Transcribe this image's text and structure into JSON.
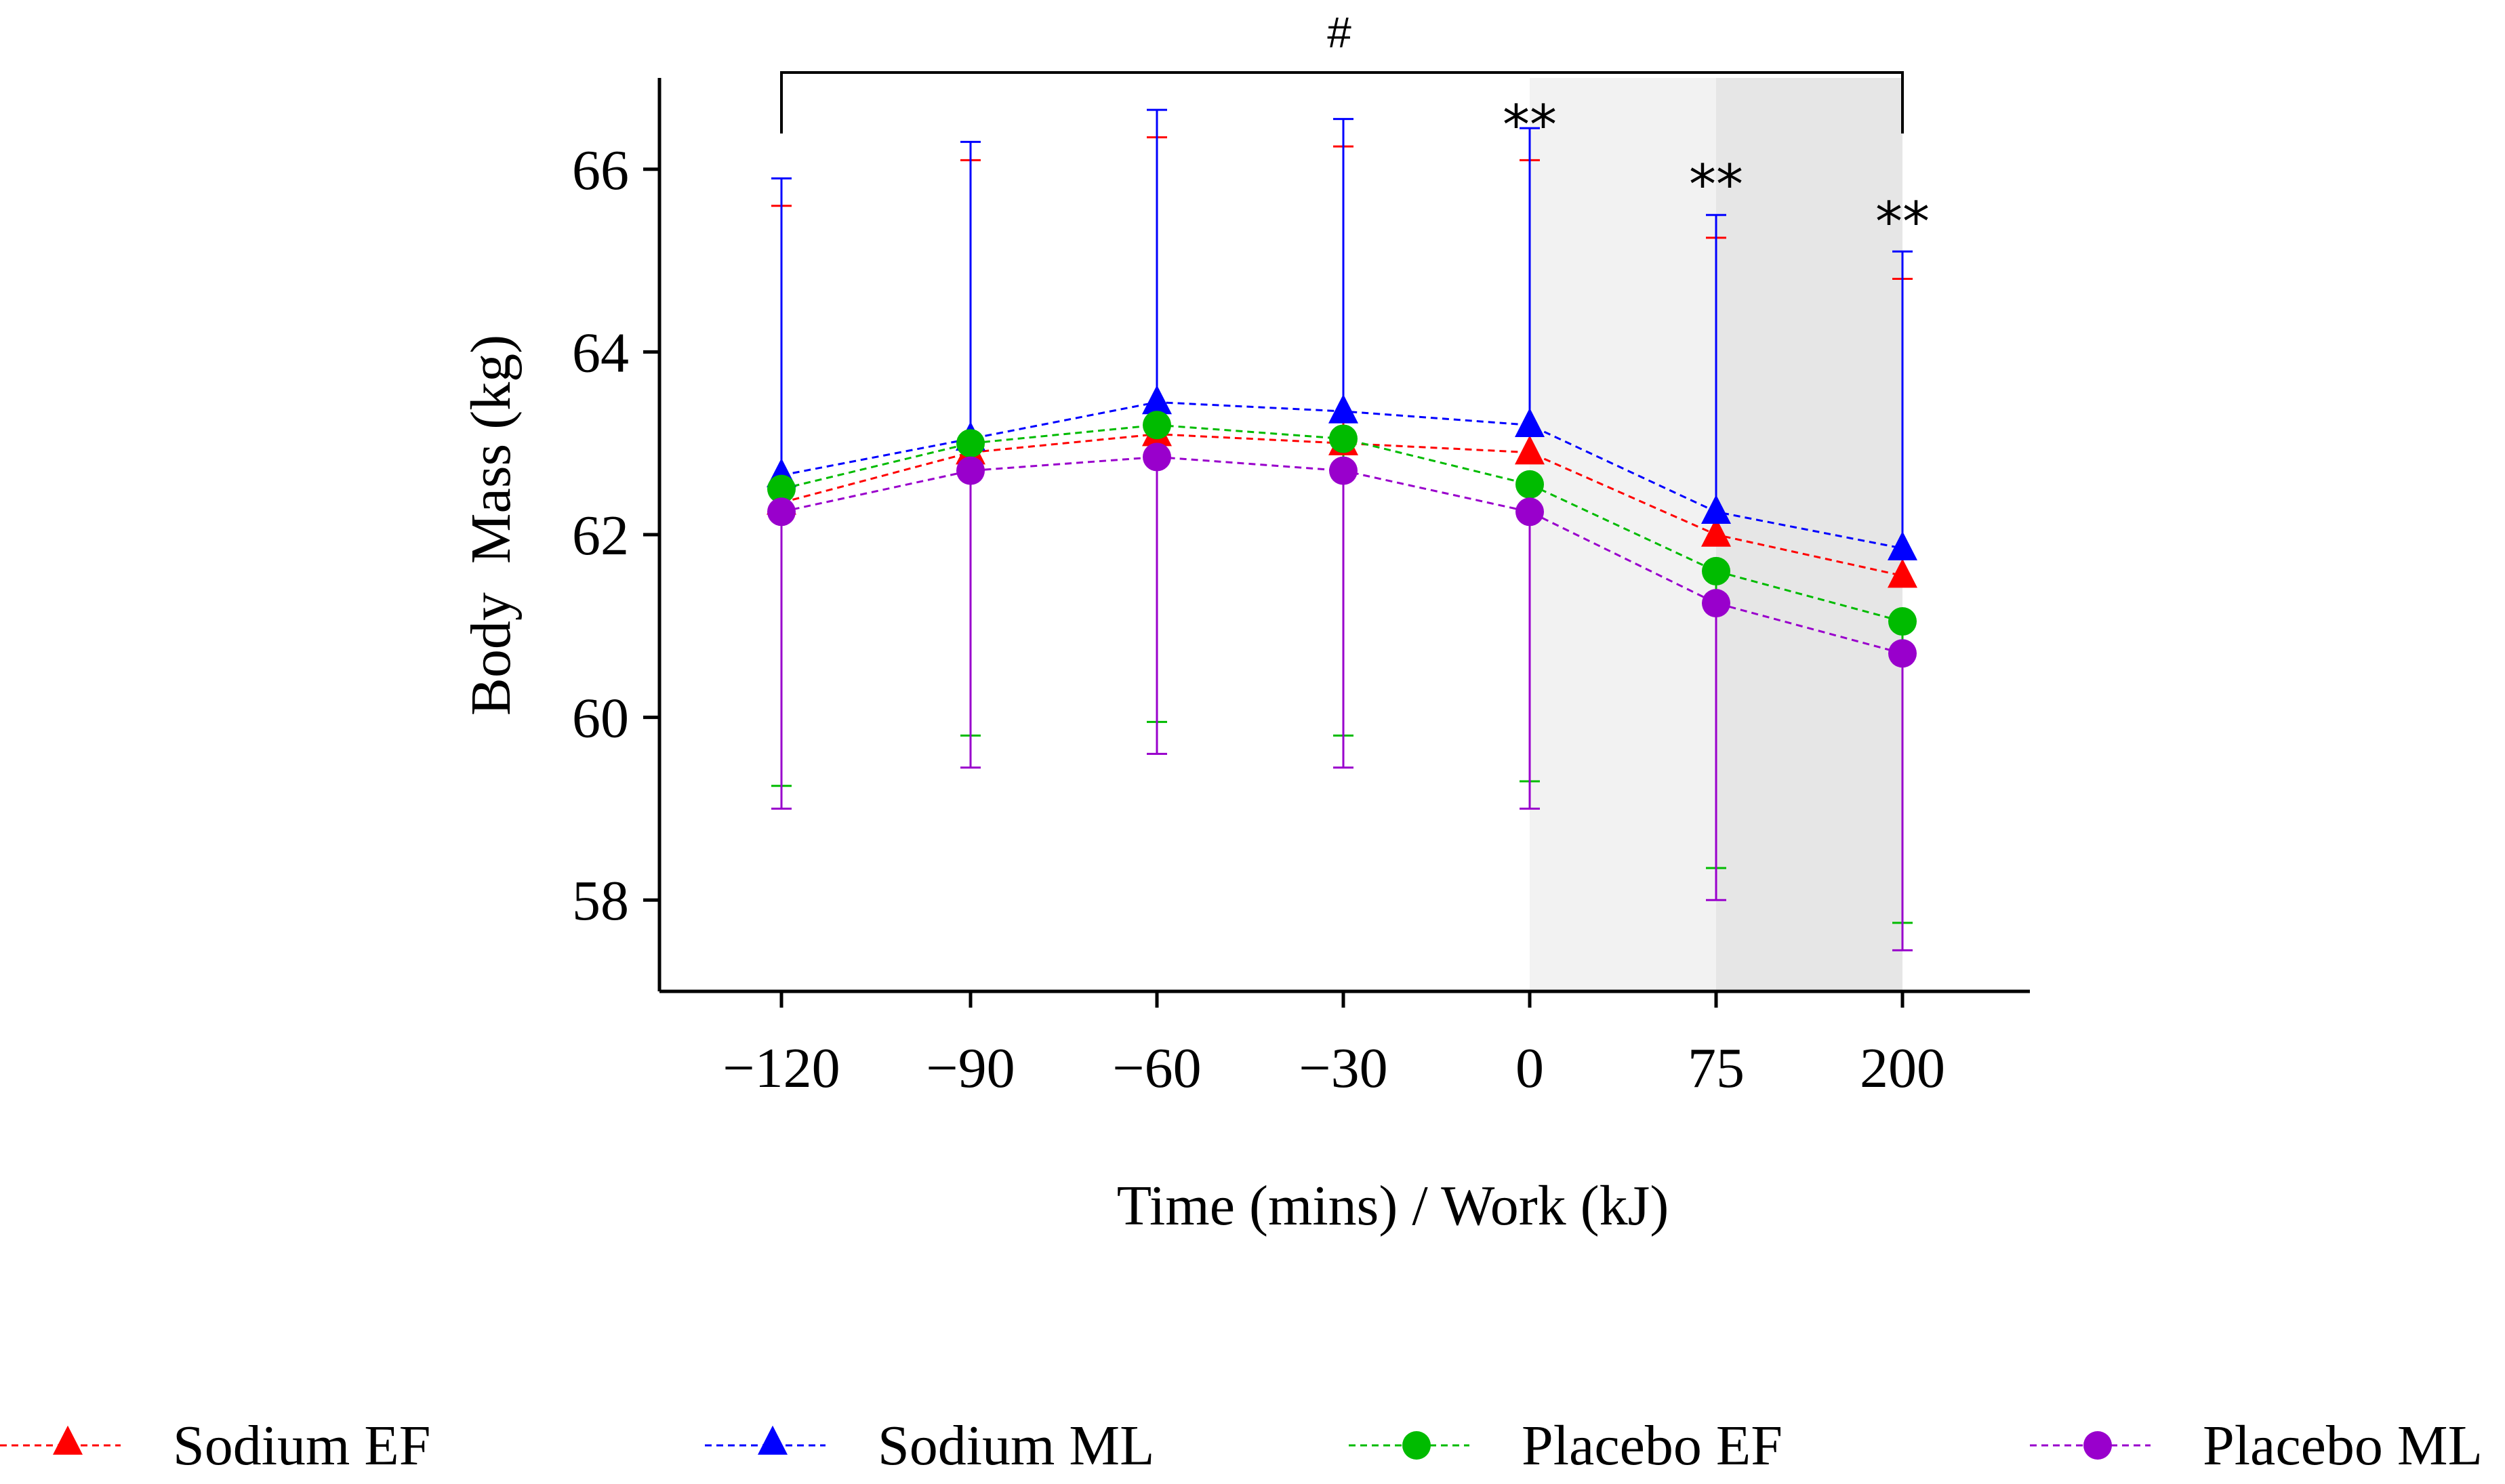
{
  "chart_data": {
    "type": "line",
    "title": "",
    "xlabel": "Time (mins) / Work (kJ)",
    "ylabel": "Body  Mass (kg)",
    "categories": [
      "−120",
      "−90",
      "−60",
      "−30",
      "0",
      "75",
      "200"
    ],
    "ylim": [
      57,
      67
    ],
    "yticks": [
      58,
      60,
      62,
      64,
      66
    ],
    "shaded_regions": [
      {
        "from_index": 4,
        "to_index": 5,
        "shade": "light",
        "color": "#f2f2f2"
      },
      {
        "from_index": 5,
        "to_index": 6,
        "shade": "dark",
        "color": "#e6e6e6"
      }
    ],
    "significance": {
      "bracket_label": "#",
      "bracket_from_index": 0,
      "bracket_to_index": 6,
      "star_label": "**",
      "star_indices": [
        4,
        5,
        6
      ]
    },
    "legend_position": "bottom",
    "series": [
      {
        "name": "Sodium EF",
        "color": "#ff0000",
        "marker": "triangle",
        "values": [
          62.35,
          62.9,
          63.1,
          63.0,
          62.9,
          62.0,
          61.55
        ],
        "err_upper": [
          65.6,
          66.1,
          66.35,
          66.25,
          66.1,
          65.25,
          64.8
        ],
        "err_lower": []
      },
      {
        "name": "Sodium ML",
        "color": "#0000ff",
        "marker": "triangle",
        "values": [
          62.65,
          63.05,
          63.45,
          63.35,
          63.2,
          62.25,
          61.85
        ],
        "err_upper": [
          65.9,
          66.3,
          66.65,
          66.55,
          66.45,
          65.5,
          65.1
        ],
        "err_lower": []
      },
      {
        "name": "Placebo EF",
        "color": "#00bb00",
        "marker": "circle",
        "values": [
          62.5,
          63.0,
          63.2,
          63.05,
          62.55,
          61.6,
          61.05
        ],
        "err_upper": [],
        "err_lower": [
          59.25,
          59.8,
          59.95,
          59.8,
          59.3,
          58.35,
          57.75
        ]
      },
      {
        "name": "Placebo ML",
        "color": "#9900cc",
        "marker": "circle",
        "values": [
          62.25,
          62.7,
          62.85,
          62.7,
          62.25,
          61.25,
          60.7
        ],
        "err_upper": [],
        "err_lower": [
          59.0,
          59.45,
          59.6,
          59.45,
          59.0,
          58.0,
          57.45
        ]
      }
    ]
  }
}
